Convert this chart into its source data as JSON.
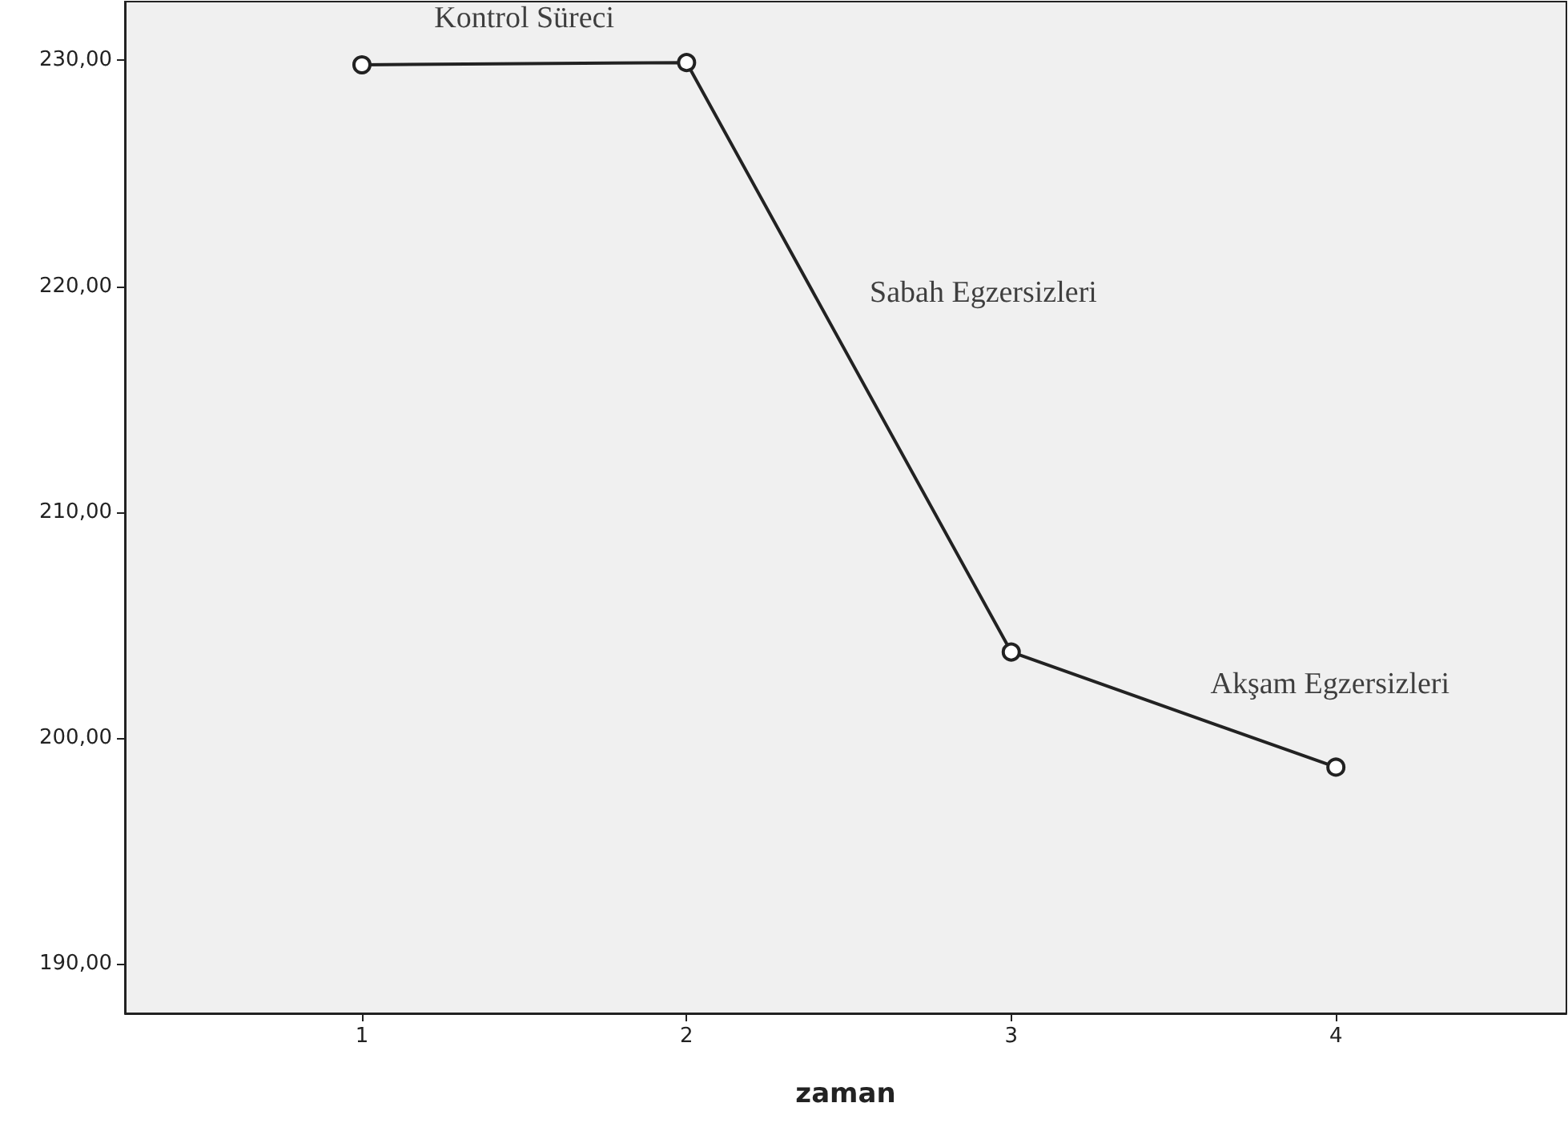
{
  "chart_data": {
    "type": "line",
    "xlabel": "zaman",
    "x": [
      1,
      2,
      3,
      4
    ],
    "series": [
      {
        "color": "#222222",
        "values": [
          229.8,
          229.9,
          203.8,
          198.7
        ]
      }
    ],
    "xlim": [
      0.27,
      4.71
    ],
    "xticks": [
      1,
      2,
      3,
      4
    ],
    "ylim": [
      187.8,
      232.6
    ],
    "yticks": [
      {
        "value": 190,
        "label": "190,00"
      },
      {
        "value": 200,
        "label": "200,00"
      },
      {
        "value": 210,
        "label": "210,00"
      },
      {
        "value": 220,
        "label": "220,00"
      },
      {
        "value": 230,
        "label": "230,00"
      }
    ],
    "grid": false,
    "marker": "circle",
    "line_style": "solid",
    "annotations": [
      "Kontrol Süreci",
      "Sabah Egzersizleri",
      "Akşam Egzersizleri"
    ]
  }
}
